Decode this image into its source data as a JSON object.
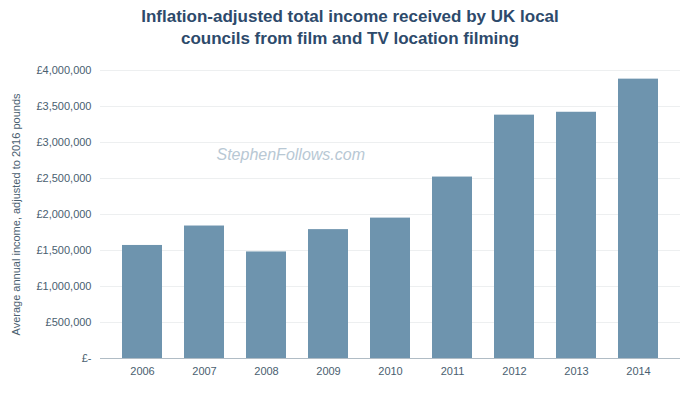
{
  "chart_data": {
    "type": "bar",
    "title": "Inflation-adjusted total income received by UK local\ncouncils from film and TV location filming",
    "ylabel": "Average annual income, adjusted to 2016 pounds",
    "annotations": [
      "StephenFollows.com"
    ],
    "categories": [
      "2006",
      "2007",
      "2008",
      "2009",
      "2010",
      "2011",
      "2012",
      "2013",
      "2014"
    ],
    "values": [
      1570000,
      1840000,
      1480000,
      1790000,
      1950000,
      2520000,
      3380000,
      3420000,
      3880000
    ],
    "color": "#6e94ae",
    "ylim": [
      0,
      4000000
    ],
    "yticks": [
      {
        "value": 0,
        "label": "£-"
      },
      {
        "value": 500000,
        "label": "£500,000"
      },
      {
        "value": 1000000,
        "label": "£1,000,000"
      },
      {
        "value": 1500000,
        "label": "£1,500,000"
      },
      {
        "value": 2000000,
        "label": "£2,000,000"
      },
      {
        "value": 2500000,
        "label": "£2,500,000"
      },
      {
        "value": 3000000,
        "label": "£3,000,000"
      },
      {
        "value": 3500000,
        "label": "£3,500,000"
      },
      {
        "value": 4000000,
        "label": "£4,000,000"
      }
    ],
    "grid": true
  }
}
